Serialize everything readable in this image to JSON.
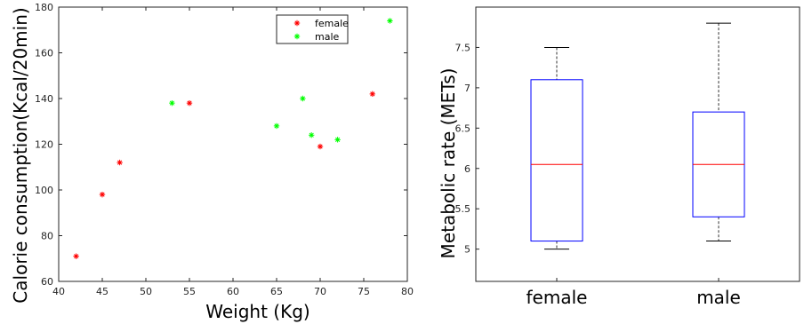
{
  "chart_data": [
    {
      "type": "scatter",
      "xlabel": "Weight (Kg)",
      "ylabel": "Calorie consumption(Kcal/20min)",
      "xlim": [
        40,
        80
      ],
      "ylim": [
        60,
        180
      ],
      "xticks": [
        "40",
        "45",
        "50",
        "55",
        "60",
        "65",
        "70",
        "75",
        "80"
      ],
      "yticks": [
        "60",
        "80",
        "100",
        "120",
        "140",
        "160",
        "180"
      ],
      "legend_position": "top-right",
      "series": [
        {
          "name": "female",
          "color": "#ff0000",
          "marker": "asterisk",
          "points": [
            [
              42,
              71
            ],
            [
              45,
              98
            ],
            [
              47,
              112
            ],
            [
              55,
              138
            ],
            [
              70,
              119
            ],
            [
              76,
              142
            ]
          ]
        },
        {
          "name": "male",
          "color": "#00ff00",
          "marker": "asterisk",
          "points": [
            [
              53,
              138
            ],
            [
              65,
              128
            ],
            [
              68,
              140
            ],
            [
              69,
              124
            ],
            [
              72,
              122
            ],
            [
              78,
              174
            ]
          ]
        }
      ]
    },
    {
      "type": "box",
      "ylabel": "Metabolic rate (METs)",
      "categories": [
        "female",
        "male"
      ],
      "ylim": [
        4.6,
        8.0
      ],
      "yticks": [
        "5",
        "5.5",
        "6",
        "6.5",
        "7",
        "7.5"
      ],
      "box_color": "#0000ff",
      "median_color": "#ff0000",
      "whisker_color": "#000000",
      "boxes": [
        {
          "category": "female",
          "min": 5.0,
          "q1": 5.1,
          "median": 6.05,
          "q3": 7.1,
          "max": 7.5
        },
        {
          "category": "male",
          "min": 5.1,
          "q1": 5.4,
          "median": 6.05,
          "q3": 6.7,
          "max": 7.8
        }
      ]
    }
  ]
}
